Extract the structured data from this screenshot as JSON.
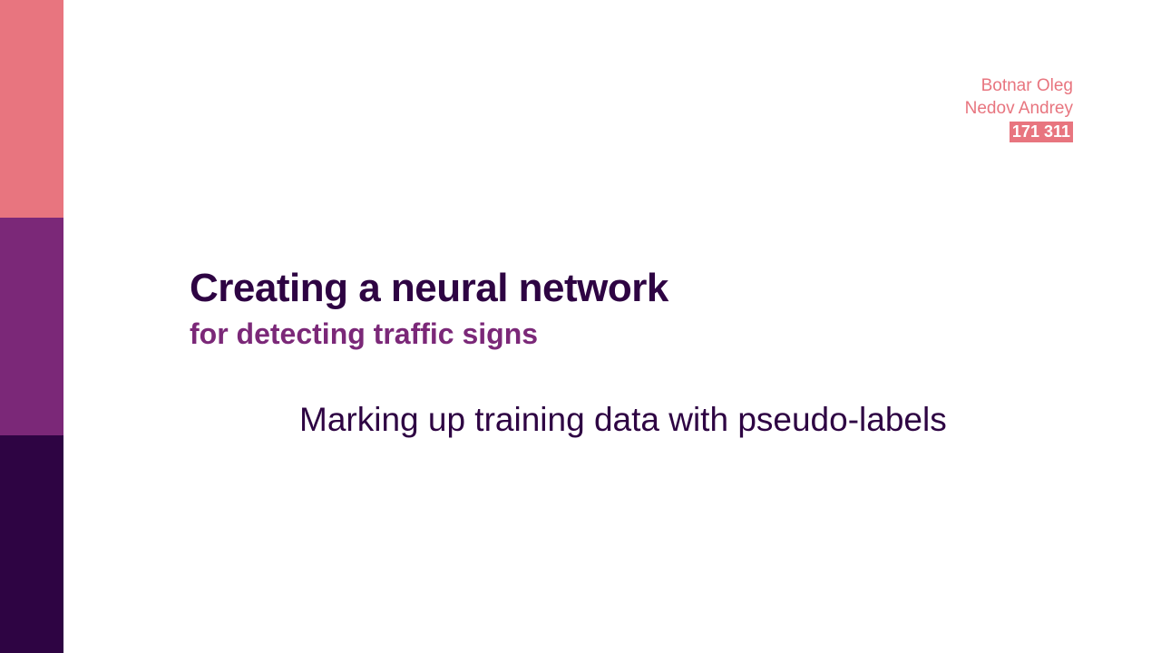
{
  "colors": {
    "stripe_top": "#e8757f",
    "stripe_middle": "#7b2878",
    "stripe_bottom": "#2e0443",
    "title": "#2e0443",
    "subtitle": "#7b2878",
    "topic": "#2e0443",
    "authors": "#e8757f",
    "badge_bg": "#e8757f"
  },
  "authors": {
    "names": [
      "Botnar Oleg",
      "Nedov Andrey"
    ],
    "group": "171 311"
  },
  "title": "Creating a neural network",
  "subtitle": "for detecting traffic signs",
  "topic": "Marking up training data with pseudo-labels"
}
